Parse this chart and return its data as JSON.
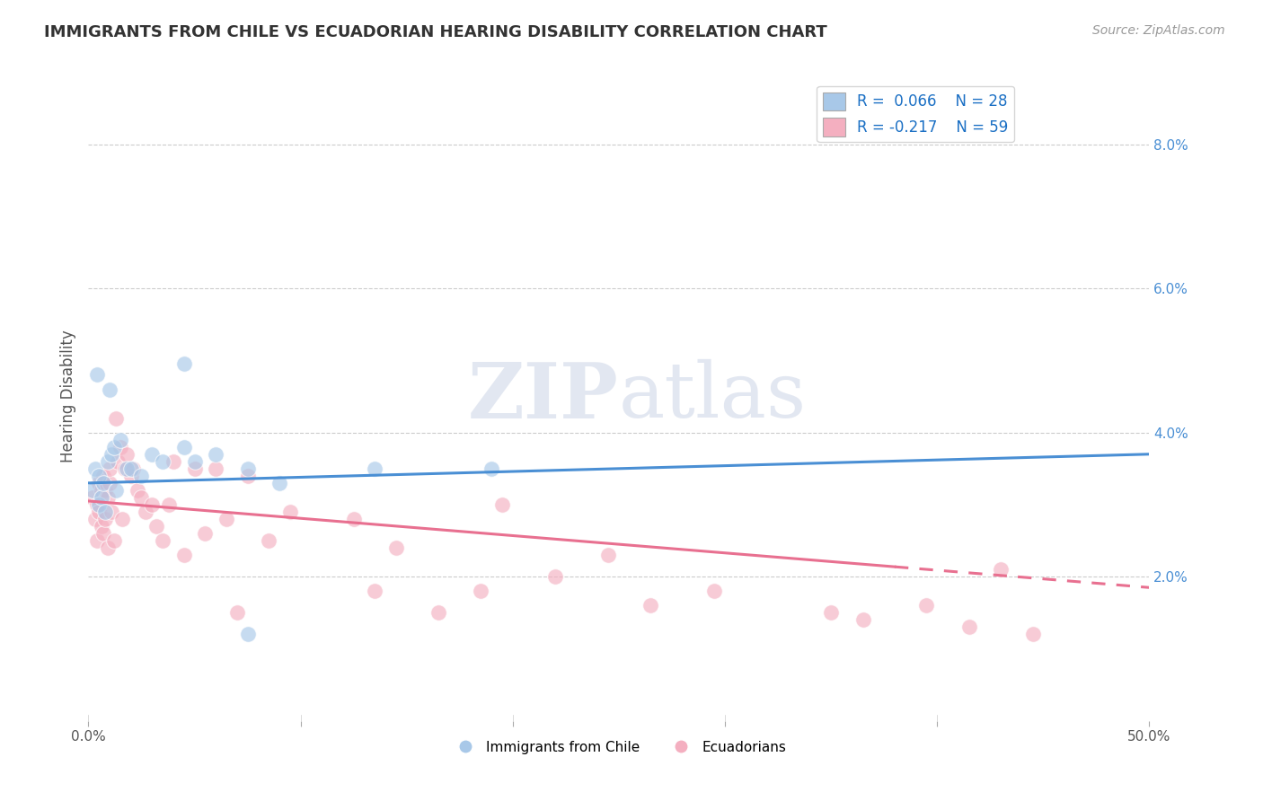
{
  "title": "IMMIGRANTS FROM CHILE VS ECUADORIAN HEARING DISABILITY CORRELATION CHART",
  "source": "Source: ZipAtlas.com",
  "ylabel": "Hearing Disability",
  "xlim": [
    0.0,
    50.0
  ],
  "ylim": [
    0.0,
    9.0
  ],
  "yticks_right": [
    2.0,
    4.0,
    6.0,
    8.0
  ],
  "blue_R": 0.066,
  "blue_N": 28,
  "pink_R": -0.217,
  "pink_N": 59,
  "blue_color": "#a8c8e8",
  "pink_color": "#f4afc0",
  "blue_line_color": "#4a8fd4",
  "pink_line_color": "#e87090",
  "background_color": "#ffffff",
  "blue_line_x0": 0.0,
  "blue_line_y0": 3.3,
  "blue_line_x1": 50.0,
  "blue_line_y1": 3.7,
  "pink_line_x0": 0.0,
  "pink_line_y0": 3.05,
  "pink_line_x1": 50.0,
  "pink_line_y1": 1.85,
  "pink_dash_start": 38.0,
  "blue_points_x": [
    0.2,
    0.3,
    0.4,
    0.5,
    0.5,
    0.6,
    0.7,
    0.8,
    0.9,
    1.0,
    1.1,
    1.2,
    1.3,
    1.5,
    1.8,
    2.0,
    2.5,
    3.0,
    3.5,
    4.5,
    5.0,
    6.0,
    7.5,
    9.0,
    13.5,
    4.5,
    19.0,
    7.5
  ],
  "blue_points_y": [
    3.2,
    3.5,
    4.8,
    3.0,
    3.4,
    3.1,
    3.3,
    2.9,
    3.6,
    4.6,
    3.7,
    3.8,
    3.2,
    3.9,
    3.5,
    3.5,
    3.4,
    3.7,
    3.6,
    3.8,
    3.6,
    3.7,
    3.5,
    3.3,
    3.5,
    4.95,
    3.5,
    1.2
  ],
  "pink_points_x": [
    0.2,
    0.3,
    0.4,
    0.4,
    0.5,
    0.5,
    0.6,
    0.6,
    0.7,
    0.7,
    0.8,
    0.8,
    0.9,
    0.9,
    1.0,
    1.0,
    1.1,
    1.2,
    1.3,
    1.4,
    1.5,
    1.6,
    1.7,
    1.8,
    2.0,
    2.1,
    2.3,
    2.5,
    2.7,
    3.0,
    3.2,
    3.5,
    3.8,
    4.0,
    4.5,
    5.0,
    5.5,
    6.0,
    6.5,
    7.0,
    7.5,
    8.5,
    9.5,
    12.5,
    13.5,
    14.5,
    16.5,
    18.5,
    19.5,
    22.0,
    24.5,
    26.5,
    29.5,
    35.0,
    36.5,
    39.5,
    41.5,
    43.0,
    44.5
  ],
  "pink_points_y": [
    3.1,
    2.8,
    3.0,
    2.5,
    3.3,
    2.9,
    3.2,
    2.7,
    2.6,
    3.4,
    3.2,
    2.8,
    2.4,
    3.1,
    3.3,
    3.5,
    2.9,
    2.5,
    4.2,
    3.6,
    3.8,
    2.8,
    3.5,
    3.7,
    3.4,
    3.5,
    3.2,
    3.1,
    2.9,
    3.0,
    2.7,
    2.5,
    3.0,
    3.6,
    2.3,
    3.5,
    2.6,
    3.5,
    2.8,
    1.5,
    3.4,
    2.5,
    2.9,
    2.8,
    1.8,
    2.4,
    1.5,
    1.8,
    3.0,
    2.0,
    2.3,
    1.6,
    1.8,
    1.5,
    1.4,
    1.6,
    1.3,
    2.1,
    1.2
  ]
}
